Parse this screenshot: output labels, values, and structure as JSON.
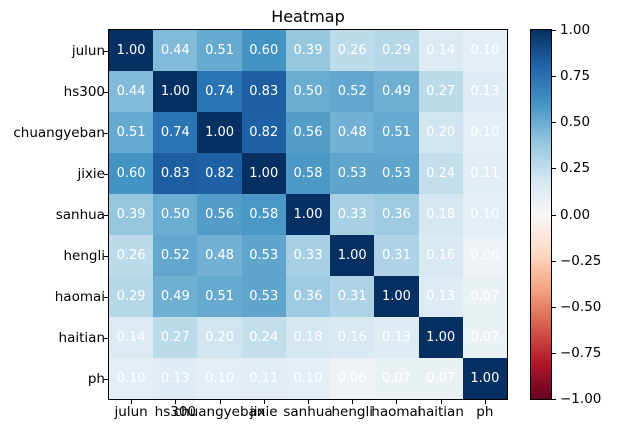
{
  "title": "Heatmap",
  "chart_data": {
    "type": "heatmap",
    "title": "Heatmap",
    "categories": [
      "julun",
      "hs300",
      "chuangyeban",
      "jixie",
      "sanhua",
      "hengli",
      "haomai",
      "haitian",
      "ph"
    ],
    "matrix": [
      [
        1.0,
        0.44,
        0.51,
        0.6,
        0.39,
        0.26,
        0.29,
        0.14,
        0.1
      ],
      [
        0.44,
        1.0,
        0.74,
        0.83,
        0.5,
        0.52,
        0.49,
        0.27,
        0.13
      ],
      [
        0.51,
        0.74,
        1.0,
        0.82,
        0.56,
        0.48,
        0.51,
        0.2,
        0.1
      ],
      [
        0.6,
        0.83,
        0.82,
        1.0,
        0.58,
        0.53,
        0.53,
        0.24,
        0.11
      ],
      [
        0.39,
        0.5,
        0.56,
        0.58,
        1.0,
        0.33,
        0.36,
        0.18,
        0.1
      ],
      [
        0.26,
        0.52,
        0.48,
        0.53,
        0.33,
        1.0,
        0.31,
        0.16,
        0.06
      ],
      [
        0.29,
        0.49,
        0.51,
        0.53,
        0.36,
        0.31,
        1.0,
        0.13,
        0.07
      ],
      [
        0.14,
        0.27,
        0.2,
        0.24,
        0.18,
        0.16,
        0.13,
        1.0,
        0.07
      ],
      [
        0.1,
        0.13,
        0.1,
        0.11,
        0.1,
        0.06,
        0.07,
        0.07,
        1.0
      ]
    ],
    "vmin": -1,
    "vmax": 1,
    "annotation_decimals": 2,
    "annotation_color": "#ffffff",
    "colormap": "RdBu",
    "colormap_stops": [
      "#67001f",
      "#b2182b",
      "#d6604d",
      "#f4a582",
      "#fddbc7",
      "#f7f7f7",
      "#d1e5f0",
      "#92c5de",
      "#4393c3",
      "#2166ac",
      "#053061"
    ],
    "colorbar_ticks": [
      {
        "label": "1.00",
        "value": 1.0
      },
      {
        "label": "0.75",
        "value": 0.75
      },
      {
        "label": "0.50",
        "value": 0.5
      },
      {
        "label": "0.25",
        "value": 0.25
      },
      {
        "label": "0.00",
        "value": 0.0
      },
      {
        "label": "−0.25",
        "value": -0.25
      },
      {
        "label": "−0.50",
        "value": -0.5
      },
      {
        "label": "−0.75",
        "value": -0.75
      },
      {
        "label": "−1.00",
        "value": -1.0
      }
    ],
    "legend_position": "right-colorbar",
    "grid": false
  }
}
